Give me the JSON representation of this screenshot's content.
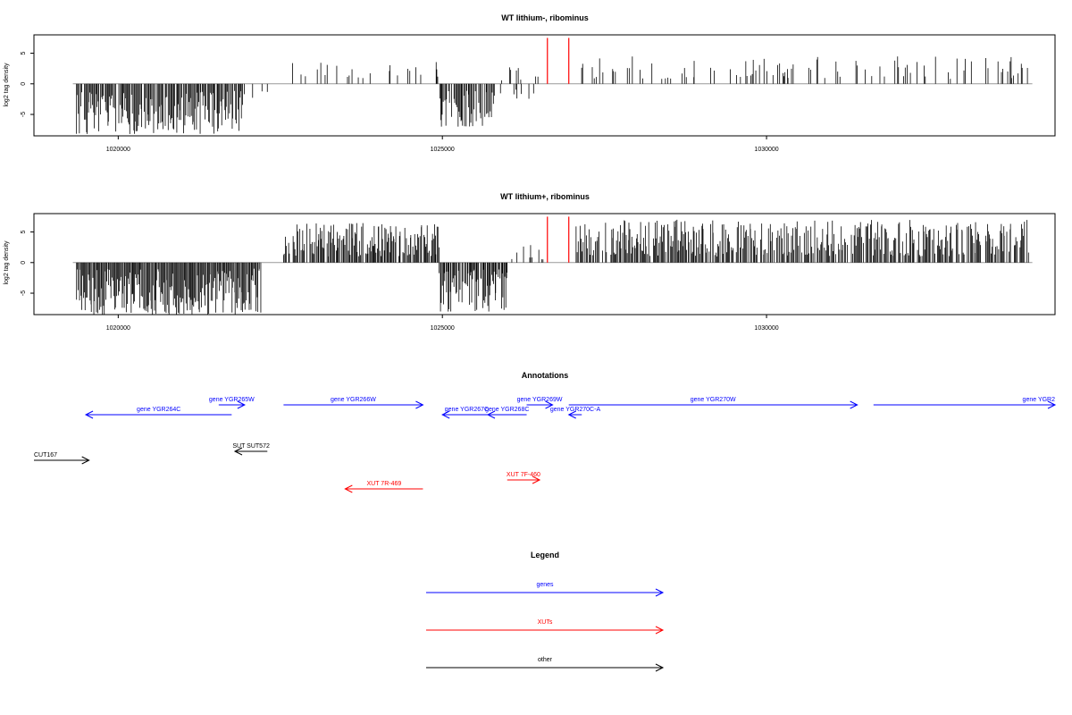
{
  "chart_data": [
    {
      "type": "bar",
      "title": "WT lithium-, ribominus",
      "ylabel": "log2 tag density",
      "xlabel": "",
      "xlim": [
        1018700,
        1034450
      ],
      "ylim": [
        -8.5,
        8
      ],
      "yticks": [
        -5,
        0,
        5
      ],
      "xticks": [
        1020000,
        1025000,
        1030000
      ],
      "baseline": {
        "x_start": 1019300,
        "x_end": 1034100
      },
      "red_markers": [
        {
          "x": 1026620,
          "value": 7.5
        },
        {
          "x": 1026950,
          "value": 7.5
        }
      ],
      "segments": [
        {
          "x_start": 1019350,
          "x_end": 1021950,
          "min": -8.2,
          "max": -1.0,
          "density": 2.6,
          "sign": "negative"
        },
        {
          "x_start": 1022000,
          "x_end": 1022300,
          "min": -2.5,
          "max": -0.5,
          "density": 0.25,
          "sign": "negative"
        },
        {
          "x_start": 1022550,
          "x_end": 1024950,
          "min": 0.8,
          "max": 4.0,
          "density": 0.45,
          "sign": "positive"
        },
        {
          "x_start": 1024950,
          "x_end": 1025800,
          "min": -7.0,
          "max": -1.0,
          "density": 2.6,
          "sign": "negative"
        },
        {
          "x_start": 1025850,
          "x_end": 1026550,
          "min": 0.5,
          "max": 3.0,
          "density": 0.22,
          "sign": "positive"
        },
        {
          "x_start": 1025850,
          "x_end": 1026600,
          "min": -2.5,
          "max": -0.5,
          "density": 0.22,
          "sign": "negative"
        },
        {
          "x_start": 1027050,
          "x_end": 1034050,
          "min": 0.8,
          "max": 4.5,
          "density": 0.55,
          "sign": "positive"
        }
      ]
    },
    {
      "type": "bar",
      "title": "WT lithium+, ribominus",
      "ylabel": "log2 tag density",
      "xlabel": "",
      "xlim": [
        1018700,
        1034450
      ],
      "ylim": [
        -8.5,
        8
      ],
      "yticks": [
        -5,
        0,
        5
      ],
      "xticks": [
        1020000,
        1025000,
        1030000
      ],
      "baseline": {
        "x_start": 1019300,
        "x_end": 1034100
      },
      "red_markers": [
        {
          "x": 1026620,
          "value": 7.5
        },
        {
          "x": 1026950,
          "value": 7.5
        }
      ],
      "segments": [
        {
          "x_start": 1019300,
          "x_end": 1019400,
          "min": 0.5,
          "max": 2.5,
          "density": 0.2,
          "sign": "positive"
        },
        {
          "x_start": 1019350,
          "x_end": 1022200,
          "min": -8.5,
          "max": -1.0,
          "density": 3.0,
          "sign": "negative"
        },
        {
          "x_start": 1022500,
          "x_end": 1024950,
          "min": 1.0,
          "max": 6.5,
          "density": 2.4,
          "sign": "positive"
        },
        {
          "x_start": 1024950,
          "x_end": 1026000,
          "min": -8.0,
          "max": -1.0,
          "density": 2.8,
          "sign": "negative"
        },
        {
          "x_start": 1026050,
          "x_end": 1026550,
          "min": 0.5,
          "max": 3.0,
          "density": 0.6,
          "sign": "positive"
        },
        {
          "x_start": 1027050,
          "x_end": 1034050,
          "min": 1.0,
          "max": 7.0,
          "density": 2.2,
          "sign": "positive"
        }
      ]
    }
  ],
  "annotations": {
    "title": "Annotations",
    "features": [
      {
        "label": "gene YGR264C",
        "x_start": 1019500,
        "x_end": 1021750,
        "strand": "-",
        "color": "#0000ff",
        "row": 4
      },
      {
        "label": "gene YGR265W",
        "x_start": 1021550,
        "x_end": 1021950,
        "strand": "+",
        "color": "#0000ff",
        "row": 3
      },
      {
        "label": "gene YGR266W",
        "x_start": 1022550,
        "x_end": 1024700,
        "strand": "+",
        "color": "#0000ff",
        "row": 3
      },
      {
        "label": "gene YGR267C",
        "x_start": 1025000,
        "x_end": 1025750,
        "strand": "-",
        "color": "#0000ff",
        "row": 4
      },
      {
        "label": "gene YGR268C",
        "x_start": 1025700,
        "x_end": 1026300,
        "strand": "-",
        "color": "#0000ff",
        "row": 4
      },
      {
        "label": "gene YGR269W",
        "x_start": 1026300,
        "x_end": 1026700,
        "strand": "+",
        "color": "#0000ff",
        "row": 3
      },
      {
        "label": "gene YGR270C-A",
        "x_start": 1026950,
        "x_end": 1027150,
        "strand": "-",
        "color": "#0000ff",
        "row": 4
      },
      {
        "label": "gene YGR270W",
        "x_start": 1026950,
        "x_end": 1031400,
        "strand": "+",
        "color": "#0000ff",
        "row": 3
      },
      {
        "label": "gene YGR2",
        "x_start": 1031650,
        "x_end": 1034450,
        "strand": "+",
        "color": "#0000ff",
        "row": 3,
        "label_anchor": "end"
      },
      {
        "label": "SUT SUT572",
        "x_start": 1021800,
        "x_end": 1022300,
        "strand": "-",
        "color": "#000000",
        "row": 2
      },
      {
        "label": "CUT167",
        "x_start": 1018700,
        "x_end": 1019550,
        "strand": "+",
        "color": "#000000",
        "row": 1,
        "label_anchor": "start"
      },
      {
        "label": "XUT 7R-469",
        "x_start": 1023500,
        "x_end": 1024700,
        "strand": "-",
        "color": "#ff0000",
        "row": 0
      },
      {
        "label": "XUT 7F-460",
        "x_start": 1026000,
        "x_end": 1026500,
        "strand": "+",
        "color": "#ff0000",
        "row": 5
      }
    ]
  },
  "legend": {
    "title": "Legend",
    "items": [
      {
        "label": "genes",
        "color": "#0000ff"
      },
      {
        "label": "XUTs",
        "color": "#ff0000"
      },
      {
        "label": "other",
        "color": "#000000"
      }
    ]
  }
}
